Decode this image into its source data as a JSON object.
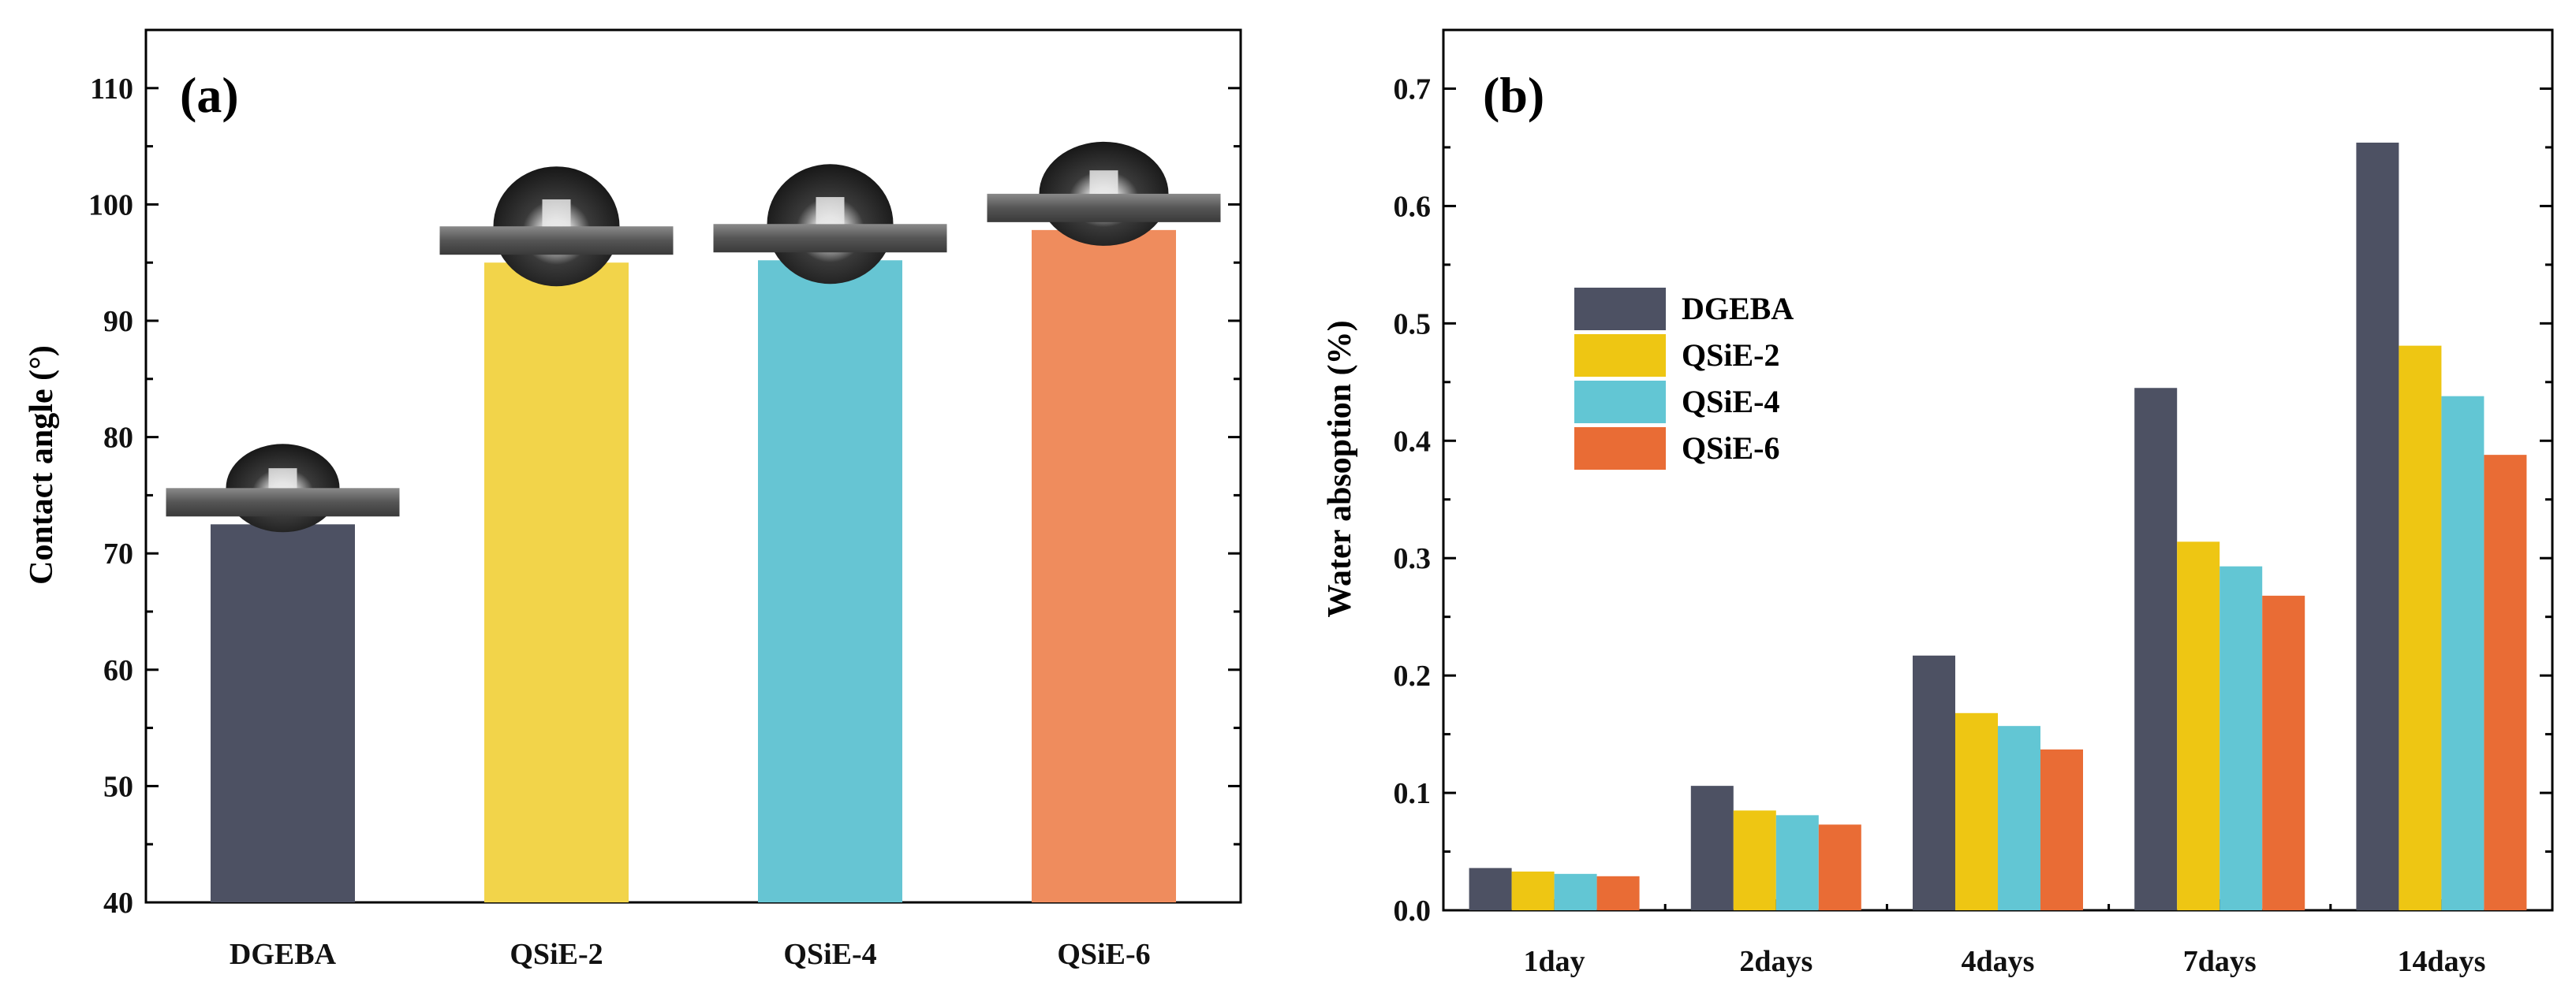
{
  "figure": {
    "panels": [
      "(a)",
      "(b)"
    ]
  },
  "chart_data": [
    {
      "type": "bar",
      "panel_label": "(a)",
      "title": "",
      "xlabel": "",
      "ylabel": "Contact angle (°)",
      "ylim": [
        40,
        115
      ],
      "yticks": [
        40,
        50,
        60,
        70,
        80,
        90,
        100,
        110
      ],
      "categories": [
        "DGEBA",
        "QSiE-2",
        "QSiE-4",
        "QSiE-6"
      ],
      "values": [
        72.5,
        95.0,
        95.2,
        97.8
      ],
      "colors": [
        "#4d5163",
        "#f2d44a",
        "#66c5d3",
        "#ef8c5d"
      ],
      "annotations": [
        "water droplet image",
        "water droplet image",
        "water droplet image",
        "water droplet image"
      ]
    },
    {
      "type": "bar",
      "panel_label": "(b)",
      "title": "",
      "xlabel": "",
      "ylabel": "Water absoption (%)",
      "ylim": [
        0.0,
        0.75
      ],
      "yticks": [
        0.0,
        0.1,
        0.2,
        0.3,
        0.4,
        0.5,
        0.6,
        0.7
      ],
      "categories": [
        "1day",
        "2days",
        "4days",
        "7days",
        "14days"
      ],
      "legend_position": "upper-left-center",
      "series": [
        {
          "name": "DGEBA",
          "color": "#4d5163",
          "values": [
            0.036,
            0.106,
            0.217,
            0.445,
            0.654
          ]
        },
        {
          "name": "QSiE-2",
          "color": "#eec613",
          "values": [
            0.033,
            0.085,
            0.168,
            0.314,
            0.481
          ]
        },
        {
          "name": "QSiE-4",
          "color": "#62c6d4",
          "values": [
            0.031,
            0.081,
            0.157,
            0.293,
            0.438
          ]
        },
        {
          "name": "QSiE-6",
          "color": "#e96c35",
          "values": [
            0.029,
            0.073,
            0.137,
            0.268,
            0.388
          ]
        }
      ]
    }
  ]
}
